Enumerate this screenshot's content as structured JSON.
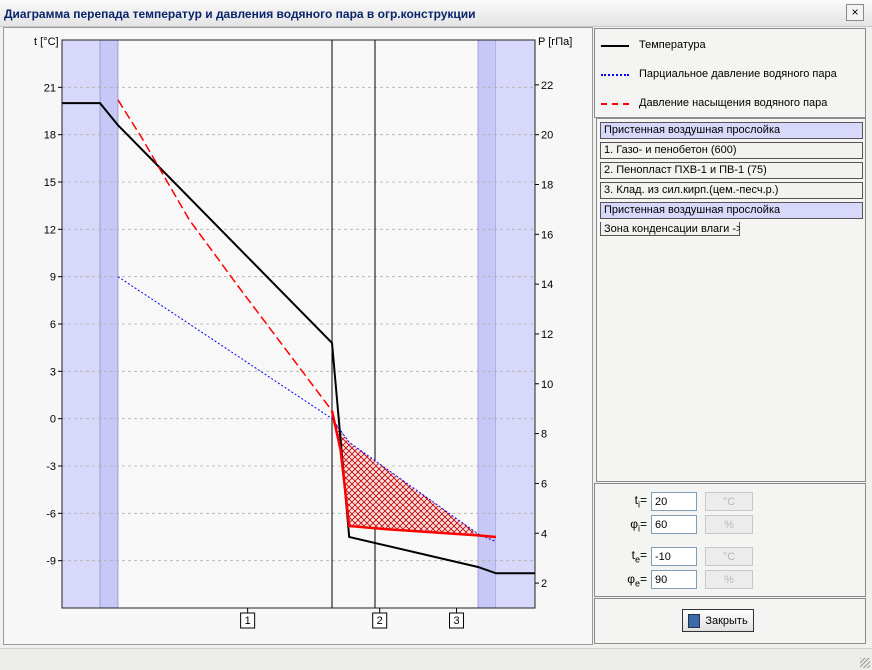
{
  "window": {
    "title": "Диаграмма перепада температур и давления водяного пара в огр.конструкции",
    "close_glyph": "×"
  },
  "legend": [
    {
      "label": "Температура",
      "color": "#000000",
      "style": "solid"
    },
    {
      "label": "Парциальное давление водяного пара",
      "color": "#0000ff",
      "style": "dotted"
    },
    {
      "label": "Давление насыщения водяного пара",
      "color": "#ff0000",
      "style": "dashed"
    }
  ],
  "layers": [
    {
      "label": "Пристенная воздушная прослойка",
      "kind": "air"
    },
    {
      "label": "1. Газо- и пенобетон (600)",
      "kind": "material"
    },
    {
      "label": "2. Пенопласт ПХВ-1 и ПВ-1 (75)",
      "kind": "material"
    },
    {
      "label": "3. Клад. из сил.кирп.(цем.-песч.р.)",
      "kind": "material"
    },
    {
      "label": "Пристенная воздушная прослойка",
      "kind": "air"
    }
  ],
  "condensation": {
    "label": "Зона конденсации влаги ->",
    "color": "#cc0000"
  },
  "params": [
    {
      "symbol": "t",
      "sub": "i",
      "value": "20",
      "unit": "°C"
    },
    {
      "symbol": "φ",
      "sub": "i",
      "value": "60",
      "unit": "%"
    },
    {
      "symbol": "t",
      "sub": "e",
      "value": "-10",
      "unit": "°C"
    },
    {
      "symbol": "φ",
      "sub": "e",
      "value": "90",
      "unit": "%"
    }
  ],
  "buttons": {
    "close_label": "Закрыть"
  },
  "chart_data": {
    "type": "line",
    "x": [
      0,
      0.1,
      1.0,
      1.16,
      1.4,
      1.5
    ],
    "zones": [
      {
        "from": 0,
        "to": 0.1,
        "kind": "air"
      },
      {
        "from": 0.1,
        "to": 1.0,
        "kind": "layer",
        "label": "1"
      },
      {
        "from": 1.0,
        "to": 1.16,
        "kind": "layer",
        "label": "2"
      },
      {
        "from": 1.16,
        "to": 1.4,
        "kind": "layer",
        "label": "3"
      },
      {
        "from": 1.4,
        "to": 1.5,
        "kind": "air"
      }
    ],
    "y_left": {
      "label": "t [°C]",
      "min": -12,
      "max": 24,
      "ticks": [
        -9,
        -6,
        -3,
        0,
        3,
        6,
        9,
        12,
        15,
        18,
        21
      ]
    },
    "y_right": {
      "label": "P [гПа]",
      "min": 1,
      "max": 23.8,
      "ticks": [
        2,
        4,
        6,
        8,
        10,
        12,
        14,
        16,
        18,
        20,
        22
      ]
    },
    "grid": true,
    "series": [
      {
        "name": "Температура",
        "axis": "left",
        "color": "#000000",
        "points": [
          [
            -0.22,
            20
          ],
          [
            -0.1,
            20
          ],
          [
            0.0,
            18.6
          ],
          [
            0.9,
            4.8
          ],
          [
            0.98,
            -7.5
          ],
          [
            1.3,
            -9.4
          ],
          [
            1.36,
            -9.8
          ],
          [
            1.5,
            -9.8
          ]
        ]
      },
      {
        "name": "Парциальное давление водяного пара",
        "axis": "left",
        "color": "#0000ff",
        "points": [
          [
            0.0,
            9.0
          ],
          [
            0.9,
            0.0
          ],
          [
            0.98,
            -1.5
          ],
          [
            1.3,
            -7.3
          ],
          [
            1.36,
            -7.8
          ]
        ]
      },
      {
        "name": "Давление насыщения водяного пара",
        "axis": "left",
        "color": "#ff0000",
        "points": [
          [
            0.0,
            20.2
          ],
          [
            0.1,
            17.8
          ],
          [
            0.3,
            12.6
          ],
          [
            0.5,
            8.5
          ],
          [
            0.7,
            4.5
          ],
          [
            0.9,
            0.5
          ],
          [
            0.94,
            -2.0
          ],
          [
            0.98,
            -6.8
          ],
          [
            1.12,
            -7.0
          ],
          [
            1.3,
            -7.4
          ],
          [
            1.36,
            -7.5
          ]
        ]
      }
    ],
    "condensation_zone": [
      [
        0.9,
        0.0
      ],
      [
        0.98,
        -1.5
      ],
      [
        1.3,
        -7.3
      ],
      [
        1.12,
        -7.0
      ],
      [
        0.98,
        -6.8
      ],
      [
        0.94,
        -2.0
      ]
    ]
  }
}
